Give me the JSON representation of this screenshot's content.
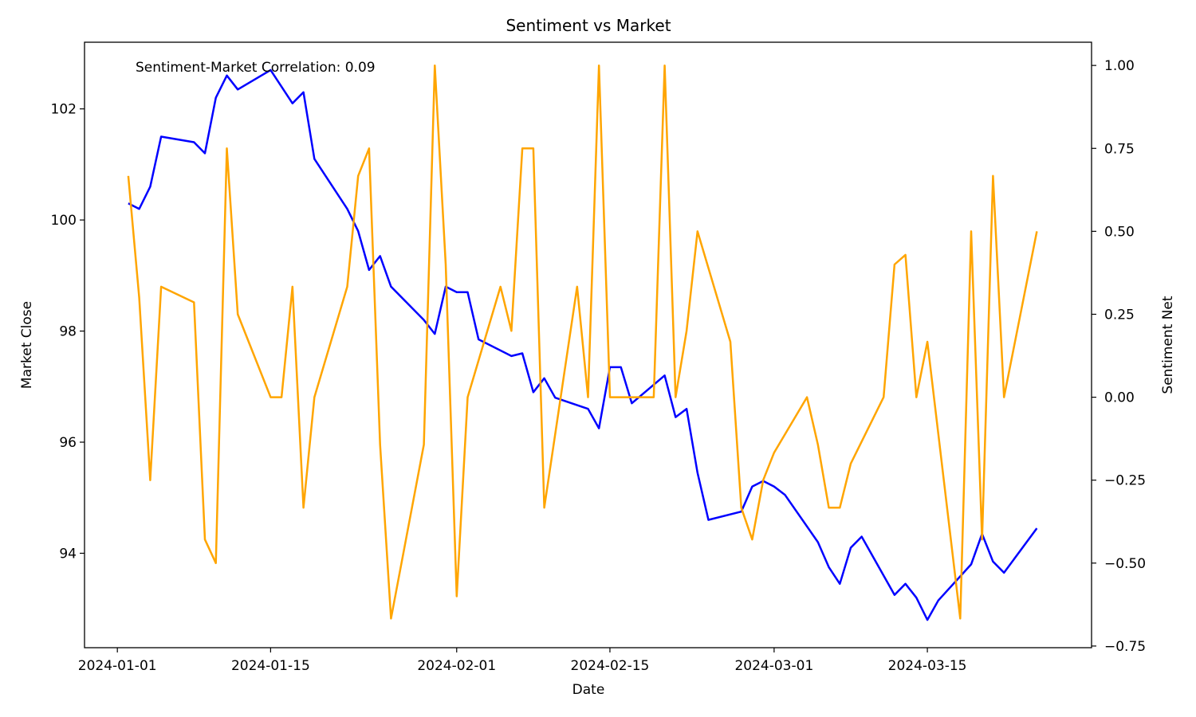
{
  "chart_data": {
    "type": "line",
    "title": "Sentiment vs Market",
    "xlabel": "Date",
    "ylabel": "Market Close",
    "y2label": "Sentiment Net",
    "annotation": "Sentiment-Market Correlation: 0.09",
    "x_tick_labels": [
      "2024-01-01",
      "2024-01-15",
      "2024-02-01",
      "2024-02-15",
      "2024-03-01",
      "2024-03-15"
    ],
    "y_ticks": [
      94,
      96,
      98,
      100,
      102
    ],
    "y2_ticks": [
      -0.75,
      -0.5,
      -0.25,
      0.0,
      0.25,
      0.5,
      0.75,
      1.0
    ],
    "y2_tick_labels": [
      "−0.75",
      "−0.50",
      "−0.25",
      "0.00",
      "0.25",
      "0.50",
      "0.75",
      "1.00"
    ],
    "xlim": [
      "2023-12-29",
      "2024-03-30"
    ],
    "ylim": [
      92.3,
      103.2
    ],
    "y2lim": [
      -0.755,
      1.07
    ],
    "grid": false,
    "series": [
      {
        "axis": "left",
        "color": "#0000ff",
        "points": [
          [
            "2024-01-02",
            100.3
          ],
          [
            "2024-01-03",
            100.2
          ],
          [
            "2024-01-04",
            100.6
          ],
          [
            "2024-01-05",
            101.5
          ],
          [
            "2024-01-08",
            101.4
          ],
          [
            "2024-01-09",
            101.2
          ],
          [
            "2024-01-10",
            102.2
          ],
          [
            "2024-01-11",
            102.6
          ],
          [
            "2024-01-12",
            102.35
          ],
          [
            "2024-01-15",
            102.7
          ],
          [
            "2024-01-17",
            102.1
          ],
          [
            "2024-01-18",
            102.3
          ],
          [
            "2024-01-19",
            101.1
          ],
          [
            "2024-01-22",
            100.2
          ],
          [
            "2024-01-23",
            99.8
          ],
          [
            "2024-01-24",
            99.1
          ],
          [
            "2024-01-25",
            99.35
          ],
          [
            "2024-01-26",
            98.8
          ],
          [
            "2024-01-29",
            98.2
          ],
          [
            "2024-01-30",
            97.95
          ],
          [
            "2024-01-31",
            98.8
          ],
          [
            "2024-02-01",
            98.7
          ],
          [
            "2024-02-02",
            98.7
          ],
          [
            "2024-02-03",
            97.85
          ],
          [
            "2024-02-06",
            97.55
          ],
          [
            "2024-02-07",
            97.6
          ],
          [
            "2024-02-08",
            96.9
          ],
          [
            "2024-02-09",
            97.15
          ],
          [
            "2024-02-10",
            96.8
          ],
          [
            "2024-02-13",
            96.6
          ],
          [
            "2024-02-14",
            96.25
          ],
          [
            "2024-02-15",
            97.35
          ],
          [
            "2024-02-16",
            97.35
          ],
          [
            "2024-02-17",
            96.7
          ],
          [
            "2024-02-20",
            97.2
          ],
          [
            "2024-02-21",
            96.45
          ],
          [
            "2024-02-22",
            96.6
          ],
          [
            "2024-02-23",
            95.45
          ],
          [
            "2024-02-24",
            94.6
          ],
          [
            "2024-02-27",
            94.75
          ],
          [
            "2024-02-28",
            95.2
          ],
          [
            "2024-02-29",
            95.3
          ],
          [
            "2024-03-01",
            95.2
          ],
          [
            "2024-03-02",
            95.05
          ],
          [
            "2024-03-05",
            94.2
          ],
          [
            "2024-03-06",
            93.75
          ],
          [
            "2024-03-07",
            93.45
          ],
          [
            "2024-03-08",
            94.1
          ],
          [
            "2024-03-09",
            94.3
          ],
          [
            "2024-03-12",
            93.25
          ],
          [
            "2024-03-13",
            93.45
          ],
          [
            "2024-03-14",
            93.2
          ],
          [
            "2024-03-15",
            92.8
          ],
          [
            "2024-03-16",
            93.15
          ],
          [
            "2024-03-19",
            93.8
          ],
          [
            "2024-03-20",
            94.35
          ],
          [
            "2024-03-21",
            93.85
          ],
          [
            "2024-03-22",
            93.65
          ],
          [
            "2024-03-25",
            94.45
          ]
        ]
      },
      {
        "axis": "right",
        "color": "#ffa500",
        "points": [
          [
            "2024-01-02",
            0.667
          ],
          [
            "2024-01-03",
            0.3
          ],
          [
            "2024-01-04",
            -0.25
          ],
          [
            "2024-01-05",
            0.333
          ],
          [
            "2024-01-08",
            0.286
          ],
          [
            "2024-01-09",
            -0.429
          ],
          [
            "2024-01-10",
            -0.5
          ],
          [
            "2024-01-11",
            0.75
          ],
          [
            "2024-01-12",
            0.25
          ],
          [
            "2024-01-15",
            0.0
          ],
          [
            "2024-01-16",
            0.0
          ],
          [
            "2024-01-17",
            0.333
          ],
          [
            "2024-01-18",
            -0.333
          ],
          [
            "2024-01-19",
            0.0
          ],
          [
            "2024-01-22",
            0.333
          ],
          [
            "2024-01-23",
            0.667
          ],
          [
            "2024-01-24",
            0.75
          ],
          [
            "2024-01-25",
            -0.143
          ],
          [
            "2024-01-26",
            -0.667
          ],
          [
            "2024-01-29",
            -0.143
          ],
          [
            "2024-01-30",
            1.0
          ],
          [
            "2024-01-31",
            0.4
          ],
          [
            "2024-02-01",
            -0.6
          ],
          [
            "2024-02-02",
            0.0
          ],
          [
            "2024-02-05",
            0.333
          ],
          [
            "2024-02-06",
            0.2
          ],
          [
            "2024-02-07",
            0.75
          ],
          [
            "2024-02-08",
            0.75
          ],
          [
            "2024-02-09",
            -0.333
          ],
          [
            "2024-02-12",
            0.333
          ],
          [
            "2024-02-13",
            0.0
          ],
          [
            "2024-02-14",
            1.0
          ],
          [
            "2024-02-15",
            0.0
          ],
          [
            "2024-02-16",
            0.0
          ],
          [
            "2024-02-19",
            0.0
          ],
          [
            "2024-02-20",
            1.0
          ],
          [
            "2024-02-21",
            0.0
          ],
          [
            "2024-02-22",
            0.2
          ],
          [
            "2024-02-23",
            0.5
          ],
          [
            "2024-02-26",
            0.167
          ],
          [
            "2024-02-27",
            -0.333
          ],
          [
            "2024-02-28",
            -0.429
          ],
          [
            "2024-02-29",
            -0.25
          ],
          [
            "2024-03-01",
            -0.167
          ],
          [
            "2024-03-04",
            0.0
          ],
          [
            "2024-03-05",
            -0.143
          ],
          [
            "2024-03-06",
            -0.333
          ],
          [
            "2024-03-07",
            -0.333
          ],
          [
            "2024-03-08",
            -0.2
          ],
          [
            "2024-03-11",
            0.0
          ],
          [
            "2024-03-12",
            0.4
          ],
          [
            "2024-03-13",
            0.429
          ],
          [
            "2024-03-14",
            0.0
          ],
          [
            "2024-03-15",
            0.167
          ],
          [
            "2024-03-18",
            -0.667
          ],
          [
            "2024-03-19",
            0.5
          ],
          [
            "2024-03-20",
            -0.429
          ],
          [
            "2024-03-21",
            0.667
          ],
          [
            "2024-03-22",
            0.0
          ],
          [
            "2024-03-25",
            0.5
          ]
        ]
      }
    ]
  }
}
